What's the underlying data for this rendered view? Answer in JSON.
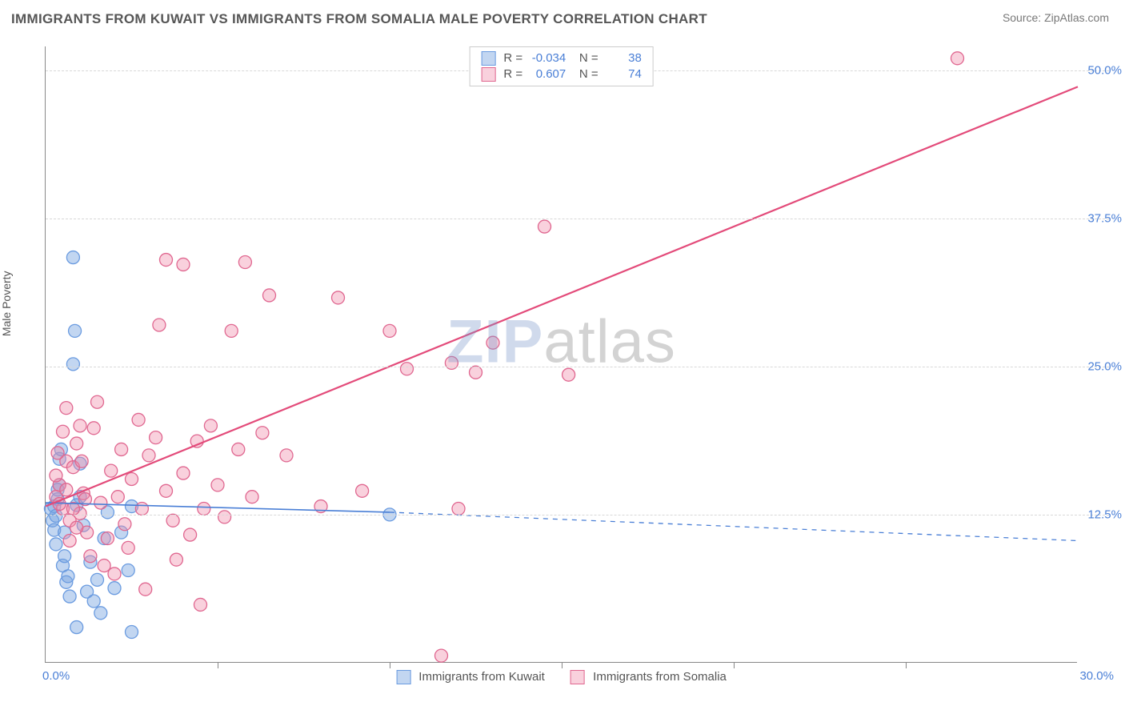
{
  "header": {
    "title": "IMMIGRANTS FROM KUWAIT VS IMMIGRANTS FROM SOMALIA MALE POVERTY CORRELATION CHART",
    "source": "Source: ZipAtlas.com"
  },
  "chart": {
    "type": "scatter",
    "ylabel": "Male Poverty",
    "xlim": [
      0,
      30
    ],
    "ylim": [
      0,
      52
    ],
    "x_ticks": [
      0,
      5,
      10,
      15,
      20,
      25,
      30
    ],
    "y_gridlines": [
      12.5,
      25.0,
      37.5,
      50.0
    ],
    "y_tick_labels": [
      "12.5%",
      "25.0%",
      "37.5%",
      "50.0%"
    ],
    "corner_x_label": "0.0%",
    "corner_x_right_label": "30.0%",
    "background_color": "#ffffff",
    "grid_color": "#d8d8d8",
    "axis_color": "#888888",
    "tick_label_color": "#4a7fd6",
    "watermark": {
      "part1": "ZIP",
      "part2": "atlas"
    },
    "series": [
      {
        "id": "kuwait",
        "label": "Immigrants from Kuwait",
        "color_fill": "rgba(120,165,225,0.45)",
        "color_stroke": "#6a9be0",
        "R": "-0.034",
        "N": "38",
        "marker_radius": 8,
        "trend": {
          "x1": 0,
          "y1": 13.5,
          "x2": 10,
          "y2": 12.7,
          "dash_to_x": 30,
          "dash_to_y": 10.3,
          "color": "#4a7fd6",
          "width": 1.6
        },
        "points": [
          [
            0.15,
            13.0
          ],
          [
            0.2,
            12.0
          ],
          [
            0.25,
            11.2
          ],
          [
            0.3,
            10.0
          ],
          [
            0.35,
            13.8
          ],
          [
            0.4,
            15.0
          ],
          [
            0.4,
            17.2
          ],
          [
            0.45,
            18.0
          ],
          [
            0.5,
            8.2
          ],
          [
            0.55,
            9.0
          ],
          [
            0.6,
            6.8
          ],
          [
            0.65,
            7.3
          ],
          [
            0.7,
            5.6
          ],
          [
            0.8,
            34.2
          ],
          [
            0.8,
            25.2
          ],
          [
            0.85,
            28.0
          ],
          [
            0.9,
            3.0
          ],
          [
            1.0,
            16.8
          ],
          [
            1.0,
            14.0
          ],
          [
            1.1,
            11.6
          ],
          [
            1.2,
            6.0
          ],
          [
            1.3,
            8.5
          ],
          [
            1.4,
            5.2
          ],
          [
            1.5,
            7.0
          ],
          [
            1.6,
            4.2
          ],
          [
            1.7,
            10.5
          ],
          [
            1.8,
            12.7
          ],
          [
            2.0,
            6.3
          ],
          [
            2.2,
            11.0
          ],
          [
            2.4,
            7.8
          ],
          [
            2.5,
            13.2
          ],
          [
            2.5,
            2.6
          ],
          [
            0.25,
            13.2
          ],
          [
            0.3,
            12.4
          ],
          [
            0.35,
            14.6
          ],
          [
            0.55,
            11.0
          ],
          [
            0.9,
            13.3
          ],
          [
            10.0,
            12.5
          ]
        ]
      },
      {
        "id": "somalia",
        "label": "Immigrants from Somalia",
        "color_fill": "rgba(240,140,170,0.40)",
        "color_stroke": "#e06790",
        "R": "0.607",
        "N": "74",
        "marker_radius": 8,
        "trend": {
          "x1": 0,
          "y1": 13.2,
          "x2": 30,
          "y2": 48.6,
          "color": "#e34b7a",
          "width": 2.2
        },
        "points": [
          [
            0.3,
            14.0
          ],
          [
            0.4,
            15.0
          ],
          [
            0.5,
            13.0
          ],
          [
            0.6,
            17.0
          ],
          [
            0.7,
            12.0
          ],
          [
            0.8,
            16.5
          ],
          [
            0.9,
            18.5
          ],
          [
            1.0,
            20.0
          ],
          [
            1.0,
            12.6
          ],
          [
            1.1,
            14.3
          ],
          [
            1.2,
            11.0
          ],
          [
            1.3,
            9.0
          ],
          [
            1.4,
            19.8
          ],
          [
            1.5,
            22.0
          ],
          [
            1.6,
            13.5
          ],
          [
            1.7,
            8.2
          ],
          [
            1.8,
            10.5
          ],
          [
            1.9,
            16.2
          ],
          [
            2.0,
            7.5
          ],
          [
            2.1,
            14.0
          ],
          [
            2.2,
            18.0
          ],
          [
            2.3,
            11.7
          ],
          [
            2.4,
            9.7
          ],
          [
            2.5,
            15.5
          ],
          [
            2.7,
            20.5
          ],
          [
            2.8,
            13.0
          ],
          [
            2.9,
            6.2
          ],
          [
            3.0,
            17.5
          ],
          [
            3.2,
            19.0
          ],
          [
            3.3,
            28.5
          ],
          [
            3.5,
            14.5
          ],
          [
            3.5,
            34.0
          ],
          [
            3.7,
            12.0
          ],
          [
            3.8,
            8.7
          ],
          [
            4.0,
            16.0
          ],
          [
            4.0,
            33.6
          ],
          [
            4.2,
            10.8
          ],
          [
            4.4,
            18.7
          ],
          [
            4.5,
            4.9
          ],
          [
            4.6,
            13.0
          ],
          [
            4.8,
            20.0
          ],
          [
            5.0,
            15.0
          ],
          [
            5.2,
            12.3
          ],
          [
            5.4,
            28.0
          ],
          [
            5.6,
            18.0
          ],
          [
            5.8,
            33.8
          ],
          [
            6.0,
            14.0
          ],
          [
            6.3,
            19.4
          ],
          [
            6.5,
            31.0
          ],
          [
            7.0,
            17.5
          ],
          [
            8.0,
            13.2
          ],
          [
            8.5,
            30.8
          ],
          [
            9.2,
            14.5
          ],
          [
            10.0,
            28.0
          ],
          [
            10.5,
            24.8
          ],
          [
            11.5,
            0.6
          ],
          [
            11.8,
            25.3
          ],
          [
            12.0,
            13.0
          ],
          [
            12.5,
            24.5
          ],
          [
            13.0,
            27.0
          ],
          [
            14.5,
            36.8
          ],
          [
            15.2,
            24.3
          ],
          [
            26.5,
            51.0
          ],
          [
            0.3,
            15.8
          ],
          [
            0.35,
            17.7
          ],
          [
            0.4,
            13.4
          ],
          [
            0.5,
            19.5
          ],
          [
            0.6,
            21.5
          ],
          [
            0.6,
            14.6
          ],
          [
            0.7,
            10.3
          ],
          [
            0.8,
            13.0
          ],
          [
            0.9,
            11.4
          ],
          [
            1.05,
            17.0
          ],
          [
            1.15,
            13.8
          ]
        ]
      }
    ],
    "stats_legend": {
      "r_label": "R =",
      "n_label": "N ="
    },
    "bottom_legend_items": [
      "Immigrants from Kuwait",
      "Immigrants from Somalia"
    ]
  }
}
